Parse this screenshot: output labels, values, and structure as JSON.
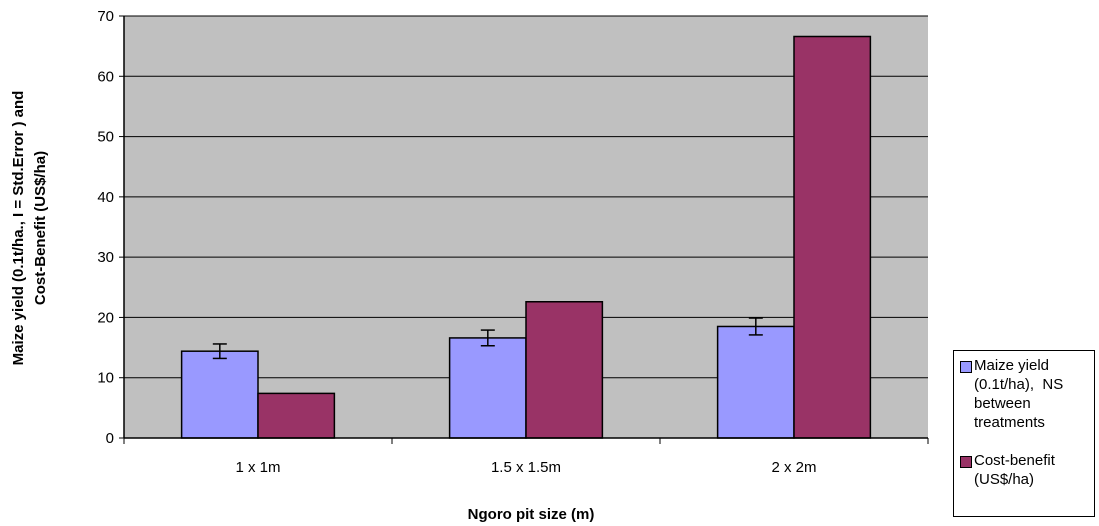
{
  "chart_data": {
    "type": "bar",
    "title": "",
    "xlabel": "Ngoro pit size (m)",
    "ylabel_line1": "Maize yield (0.1t/ha., I = Std.Error ) and",
    "ylabel_line2": "Cost-Benefit (US$/ha)",
    "categories": [
      "1 x 1m",
      "1.5 x 1.5m",
      "2 x 2m"
    ],
    "ylim": [
      0,
      70
    ],
    "yticks": [
      0,
      10,
      20,
      30,
      40,
      50,
      60,
      70
    ],
    "grid": true,
    "legend_position": "bottom-right",
    "plot_background": "#c0c0c0",
    "series": [
      {
        "name": "Maize yield (0.1t/ha), NS between treatments",
        "legend_lines": [
          "Maize yield",
          "(0.1t/ha),  NS",
          "between",
          "treatments"
        ],
        "color": "#9999ff",
        "values": [
          14.4,
          16.6,
          18.5
        ],
        "error": [
          1.2,
          1.3,
          1.4
        ]
      },
      {
        "name": "Cost-benefit (US$/ha)",
        "legend_lines": [
          "Cost-benefit",
          "(US$/ha)"
        ],
        "color": "#993366",
        "values": [
          7.4,
          22.6,
          66.6
        ]
      }
    ]
  }
}
